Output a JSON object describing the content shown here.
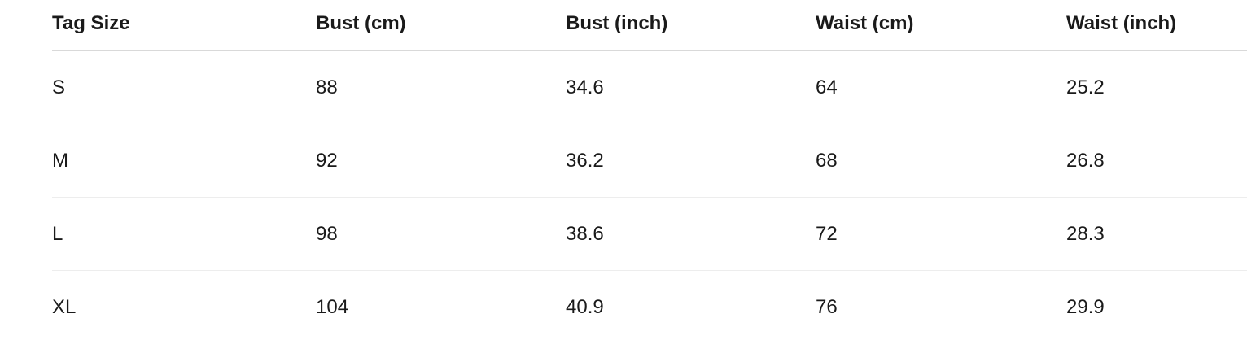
{
  "table": {
    "headers": [
      "Tag Size",
      "Bust (cm)",
      "Bust (inch)",
      "Waist (cm)",
      "Waist (inch)"
    ],
    "rows": [
      [
        "S",
        "88",
        "34.6",
        "64",
        "25.2"
      ],
      [
        "M",
        "92",
        "36.2",
        "68",
        "26.8"
      ],
      [
        "L",
        "98",
        "38.6",
        "72",
        "28.3"
      ],
      [
        "XL",
        "104",
        "40.9",
        "76",
        "29.9"
      ]
    ]
  }
}
